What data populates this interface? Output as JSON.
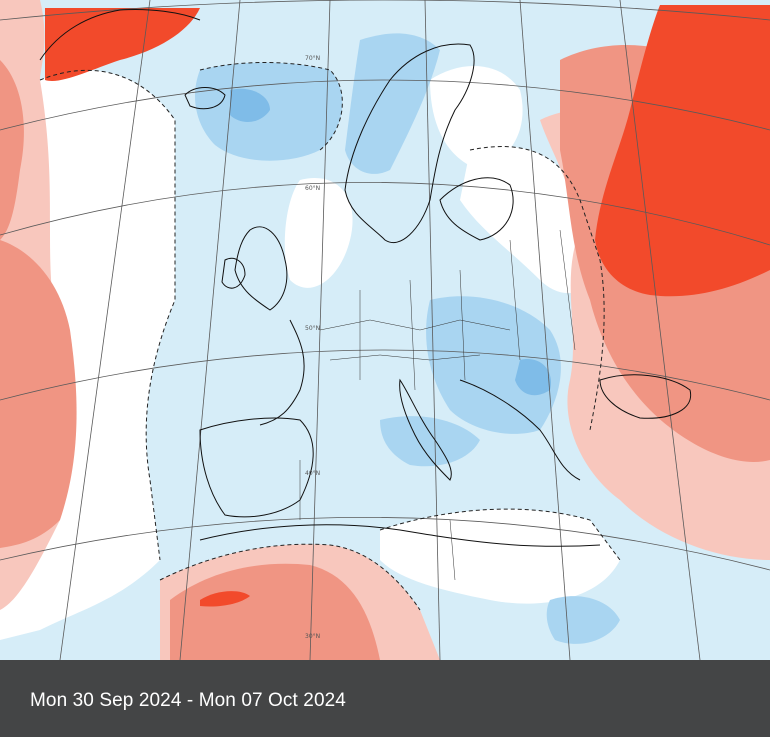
{
  "map": {
    "legend_colors": {
      "warm_strong": "#f24a2b",
      "warm": "#f09583",
      "warm_light": "#f8c7bd",
      "neutral": "#ffffff",
      "cool_light": "#d6edf8",
      "cool": "#a9d5f1",
      "cool_strong": "#7fbce8"
    },
    "grid_labels": [
      "70°N",
      "60°N",
      "50°N",
      "40°N",
      "30°N"
    ]
  },
  "caption": {
    "date_range": "Mon 30 Sep 2024 - Mon 07 Oct 2024"
  }
}
